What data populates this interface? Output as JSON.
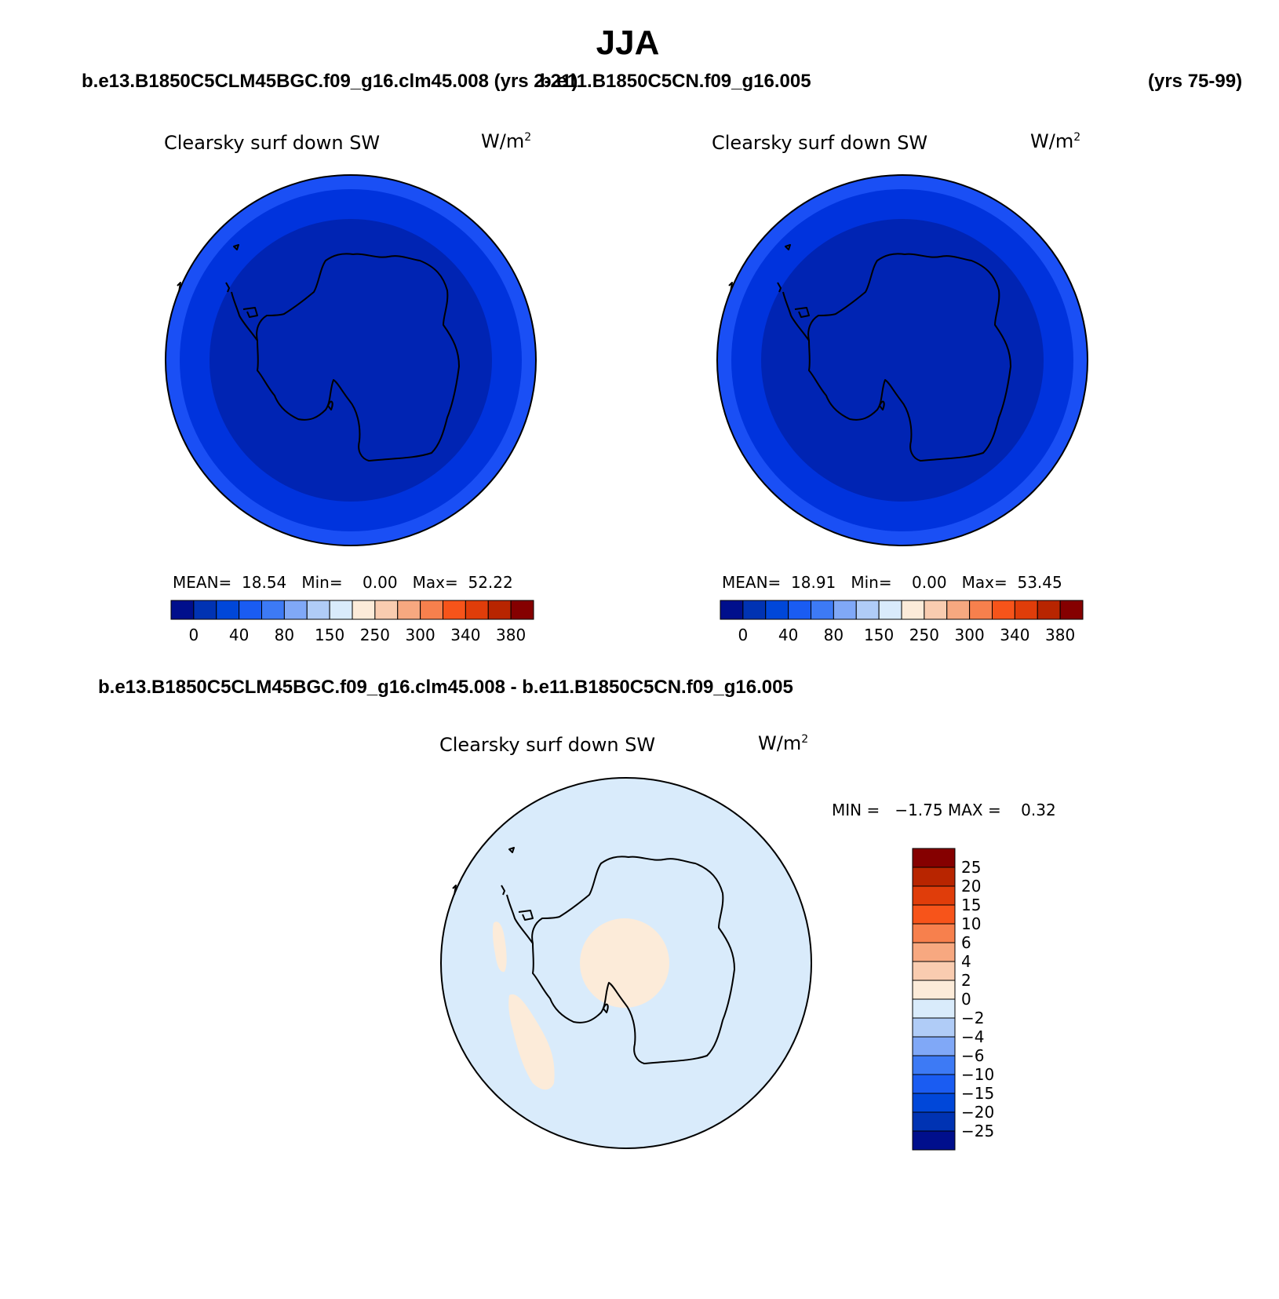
{
  "season": "JJA",
  "top_left": {
    "case": "b.e13.B1850C5CLM45BGC.f09_g16.clm45.008 (yrs 2-21)",
    "field": "Clearsky surf down SW",
    "units_base": "W/m",
    "units_exp": "2",
    "stats": {
      "mean_label": "MEAN=",
      "mean": "18.54",
      "min_label": "Min=",
      "min": "0.00",
      "max_label": "Max=",
      "max": "52.22"
    }
  },
  "top_right": {
    "case": "b.e11.B1850C5CN.f09_g16.005",
    "years": "(yrs 75-99)",
    "field": "Clearsky surf down SW",
    "units_base": "W/m",
    "units_exp": "2",
    "stats": {
      "mean_label": "MEAN=",
      "mean": "18.91",
      "min_label": "Min=",
      "min": "0.00",
      "max_label": "Max=",
      "max": "53.45"
    }
  },
  "difference": {
    "title": "b.e13.B1850C5CLM45BGC.f09_g16.clm45.008 - b.e11.B1850C5CN.f09_g16.005",
    "field": "Clearsky surf down SW",
    "units_base": "W/m",
    "units_exp": "2",
    "minmax": {
      "min_label": "MIN =",
      "min": "−1.75",
      "max_label": "MAX =",
      "max": "0.32"
    }
  },
  "colorbar_top": {
    "colors": [
      "#000f8c",
      "#0033b3",
      "#0047d9",
      "#1a5cf2",
      "#3d7af5",
      "#80a8f7",
      "#b0ccf7",
      "#d9ebfb",
      "#fcebd9",
      "#f9ccb0",
      "#f7a880",
      "#f7804d",
      "#f7541a",
      "#e03d0a",
      "#b82500",
      "#850000"
    ],
    "labels": [
      "0",
      "40",
      "80",
      "150",
      "250",
      "300",
      "340",
      "380"
    ]
  },
  "colorbar_diff": {
    "colors_top_to_bottom": [
      "#850000",
      "#b82500",
      "#e03d0a",
      "#f7541a",
      "#f7804d",
      "#f7a880",
      "#f9ccb0",
      "#fcebd9",
      "#d9ebfb",
      "#b0ccf7",
      "#80a8f7",
      "#3d7af5",
      "#1a5cf2",
      "#0047d9",
      "#0033b3",
      "#000f8c"
    ],
    "labels": [
      "25",
      "20",
      "15",
      "10",
      "6",
      "4",
      "2",
      "0",
      "−2",
      "−4",
      "−6",
      "−10",
      "−15",
      "−20",
      "−25"
    ]
  },
  "map_colors": {
    "outer_ring": "#1a4ff5",
    "middle_ring": "#0033dd",
    "inner_disk": "#0024b3",
    "diff_background": "#d9ebfb",
    "diff_positive": "#fcebd9"
  },
  "chart_data": {
    "type": "heatmap",
    "panels": [
      {
        "case": "b.e13.B1850C5CLM45BGC.f09_g16.clm45.008",
        "years": "yrs 2-21",
        "mean": 18.54,
        "min": 0.0,
        "max": 52.22
      },
      {
        "case": "b.e11.B1850C5CN.f09_g16.005",
        "years": "yrs 75-99",
        "mean": 18.91,
        "min": 0.0,
        "max": 53.45
      },
      {
        "case": "difference",
        "min": -1.75,
        "max": 0.32
      }
    ],
    "levels_abs": [
      0,
      20,
      40,
      60,
      80,
      100,
      150,
      200,
      250,
      275,
      300,
      320,
      340,
      360,
      380
    ],
    "levels_diff": [
      -25,
      -20,
      -15,
      -10,
      -6,
      -4,
      -2,
      0,
      2,
      4,
      6,
      10,
      15,
      20,
      25
    ]
  }
}
